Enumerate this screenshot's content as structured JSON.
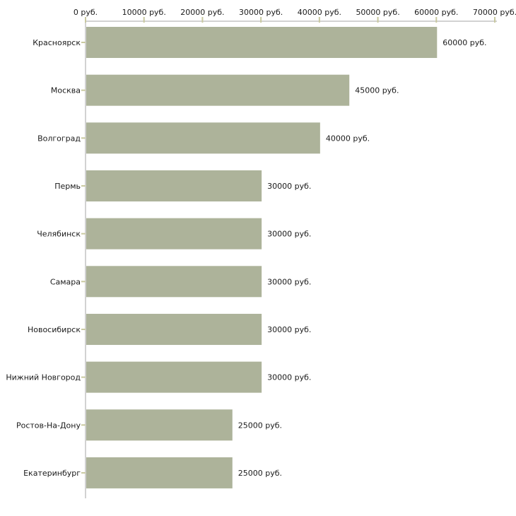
{
  "chart_data": {
    "type": "bar",
    "orientation": "horizontal",
    "title": "",
    "xlabel": "",
    "ylabel": "",
    "categories": [
      "Красноярск",
      "Москва",
      "Волгоград",
      "Пермь",
      "Челябинск",
      "Самара",
      "Новосибирск",
      "Нижний Новгород",
      "Ростов-На-Дону",
      "Екатеринбург"
    ],
    "values": [
      60000,
      45000,
      40000,
      30000,
      30000,
      30000,
      30000,
      30000,
      25000,
      25000
    ],
    "value_labels": [
      "60000 руб.",
      "45000 руб.",
      "40000 руб.",
      "30000 руб.",
      "30000 руб.",
      "30000 руб.",
      "30000 руб.",
      "30000 руб.",
      "25000 руб.",
      "25000 руб."
    ],
    "x_ticks": [
      0,
      10000,
      20000,
      30000,
      40000,
      50000,
      60000,
      70000
    ],
    "x_tick_labels": [
      "0 руб.",
      "10000 руб.",
      "20000 руб.",
      "30000 руб.",
      "40000 руб.",
      "50000 руб.",
      "60000 руб.",
      "70000 руб."
    ],
    "xlim": [
      0,
      70000
    ],
    "grid": false,
    "legend": false,
    "colors": {
      "bar_fill": "#adb39a",
      "axis_line": "#c3c3c3",
      "tick_mark": "#c9c9a0",
      "text": "#1a1a1a"
    }
  }
}
